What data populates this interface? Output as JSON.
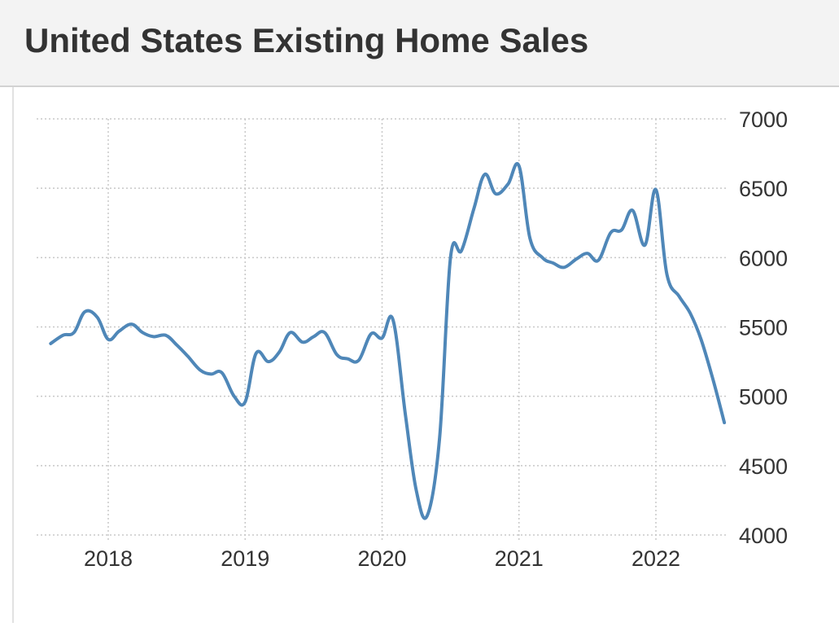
{
  "header": {
    "title": "United States Existing Home Sales"
  },
  "colors": {
    "line": "#4f87b8",
    "grid": "#c8c8c8",
    "text": "#333333",
    "header_bg": "#f3f3f3"
  },
  "chart_data": {
    "type": "line",
    "title": "United States Existing Home Sales",
    "xlabel": "",
    "ylabel": "",
    "ylim": [
      4000,
      7000
    ],
    "y_ticks": [
      4000,
      4500,
      5000,
      5500,
      6000,
      6500,
      7000
    ],
    "x_ticks": [
      {
        "label": "2018",
        "value": 2018.0
      },
      {
        "label": "2019",
        "value": 2019.0
      },
      {
        "label": "2020",
        "value": 2020.0
      },
      {
        "label": "2021",
        "value": 2021.0
      },
      {
        "label": "2022",
        "value": 2022.0
      }
    ],
    "grid": true,
    "y_axis_side": "right",
    "series": [
      {
        "x": [
          2017.58,
          2017.67,
          2017.75,
          2017.83,
          2017.92,
          2018.0,
          2018.08,
          2018.17,
          2018.25,
          2018.33,
          2018.42,
          2018.5,
          2018.58,
          2018.67,
          2018.75,
          2018.83,
          2018.92,
          2019.0,
          2019.08,
          2019.17,
          2019.25,
          2019.33,
          2019.42,
          2019.5,
          2019.58,
          2019.67,
          2019.75,
          2019.83,
          2019.92,
          2020.0,
          2020.08,
          2020.17,
          2020.25,
          2020.33,
          2020.42,
          2020.5,
          2020.58,
          2020.67,
          2020.75,
          2020.83,
          2020.92,
          2021.0,
          2021.08,
          2021.17,
          2021.25,
          2021.33,
          2021.42,
          2021.5,
          2021.58,
          2021.67,
          2021.75,
          2021.83,
          2021.92,
          2022.0,
          2022.08,
          2022.17,
          2022.25,
          2022.33,
          2022.42,
          2022.5
        ],
        "values": [
          5380,
          5440,
          5460,
          5610,
          5570,
          5410,
          5470,
          5520,
          5460,
          5430,
          5440,
          5370,
          5290,
          5190,
          5160,
          5170,
          5000,
          4960,
          5310,
          5250,
          5320,
          5460,
          5390,
          5430,
          5460,
          5300,
          5270,
          5260,
          5450,
          5420,
          5550,
          4870,
          4320,
          4140,
          4700,
          6000,
          6050,
          6350,
          6600,
          6460,
          6530,
          6660,
          6140,
          6000,
          5960,
          5930,
          5990,
          6030,
          5980,
          6180,
          6200,
          6340,
          6090,
          6490,
          5880,
          5720,
          5600,
          5410,
          5110,
          4810
        ]
      }
    ]
  }
}
